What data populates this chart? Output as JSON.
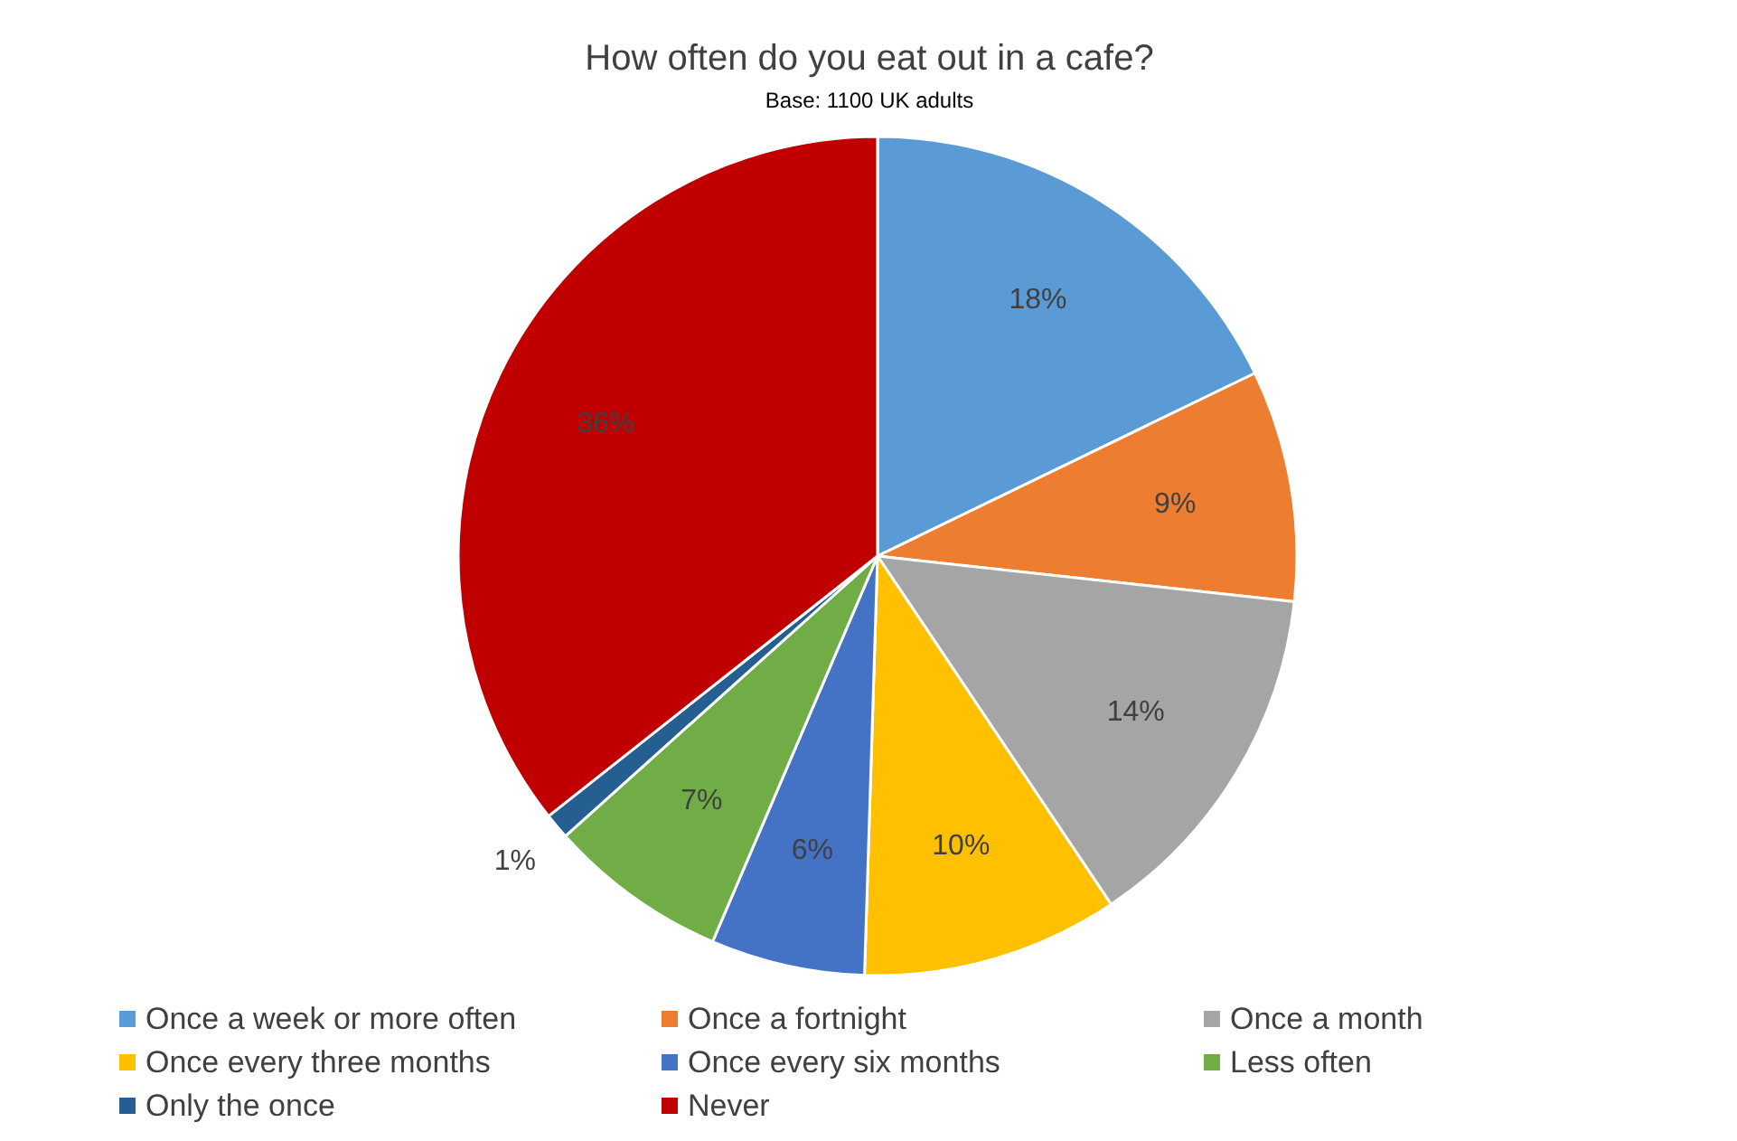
{
  "chart_data": {
    "type": "pie",
    "title": "How often do you eat out in a cafe?",
    "subtitle": "Base: 1100 UK adults",
    "categories": [
      "Once a week or more often",
      "Once a fortnight",
      "Once a month",
      "Once every three months",
      "Once every six months",
      "Less often",
      "Only the once",
      "Never"
    ],
    "values": [
      18,
      9,
      14,
      10,
      6,
      7,
      1,
      36
    ],
    "colors": [
      "#5b9bd5",
      "#ed7d31",
      "#a5a5a5",
      "#ffc000",
      "#4472c4",
      "#70ad47",
      "#255e91",
      "#c00000"
    ],
    "value_labels": [
      "18%",
      "9%",
      "14%",
      "10%",
      "6%",
      "7%",
      "1%",
      "36%"
    ],
    "legend": "bottom"
  }
}
